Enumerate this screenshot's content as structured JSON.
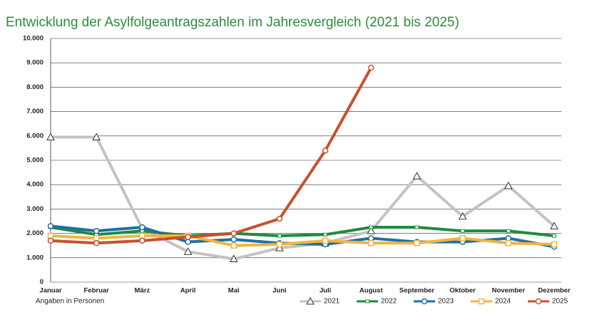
{
  "chart_data": {
    "type": "line",
    "title": "Entwicklung der Asylfolgeantragszahlen im Jahresvergleich (2021 bis 2025)",
    "annotation": "Angaben in Personen",
    "categories": [
      "Januar",
      "Februar",
      "März",
      "April",
      "Mai",
      "Juni",
      "Juli",
      "August",
      "September",
      "Oktober",
      "November",
      "Dezember"
    ],
    "series": [
      {
        "name": "2021",
        "color": "#c3c3c3",
        "marker": "triangle",
        "values": [
          5950,
          5950,
          2200,
          1250,
          950,
          1400,
          1600,
          2100,
          4350,
          2700,
          3950,
          2300
        ]
      },
      {
        "name": "2022",
        "color": "#1e8a3e",
        "marker": "dash",
        "values": [
          2250,
          1950,
          2100,
          1900,
          2000,
          1900,
          1950,
          2250,
          2250,
          2100,
          2100,
          1900
        ]
      },
      {
        "name": "2023",
        "color": "#1f6fa6",
        "marker": "circle",
        "values": [
          2300,
          2100,
          2250,
          1650,
          1750,
          1600,
          1550,
          1800,
          1650,
          1650,
          1800,
          1450
        ]
      },
      {
        "name": "2024",
        "color": "#f3b43f",
        "marker": "square",
        "values": [
          1900,
          1800,
          1900,
          1900,
          1500,
          1550,
          1700,
          1600,
          1600,
          1800,
          1600,
          1550
        ]
      },
      {
        "name": "2025",
        "color": "#c9502f",
        "marker": "circle",
        "values": [
          1700,
          1600,
          1700,
          1850,
          2000,
          2600,
          5400,
          8800,
          null,
          null,
          null,
          null
        ]
      }
    ],
    "ylim": [
      0,
      10000
    ],
    "yticks": [
      0,
      {
        "value": 1000,
        "label": "1.000"
      },
      {
        "value": 2000,
        "label": "2.000"
      },
      {
        "value": 3000,
        "label": "3.000"
      },
      {
        "value": 4000,
        "label": "4.000"
      },
      {
        "value": 5000,
        "label": "5.000"
      },
      {
        "value": 6000,
        "label": "6.000"
      },
      {
        "value": 7000,
        "label": "7.000"
      },
      {
        "value": 8000,
        "label": "8.000"
      },
      {
        "value": 9000,
        "label": "9.000"
      },
      {
        "value": 10000,
        "label": "10.000"
      }
    ],
    "grid": true,
    "legend": "bottom-right"
  }
}
